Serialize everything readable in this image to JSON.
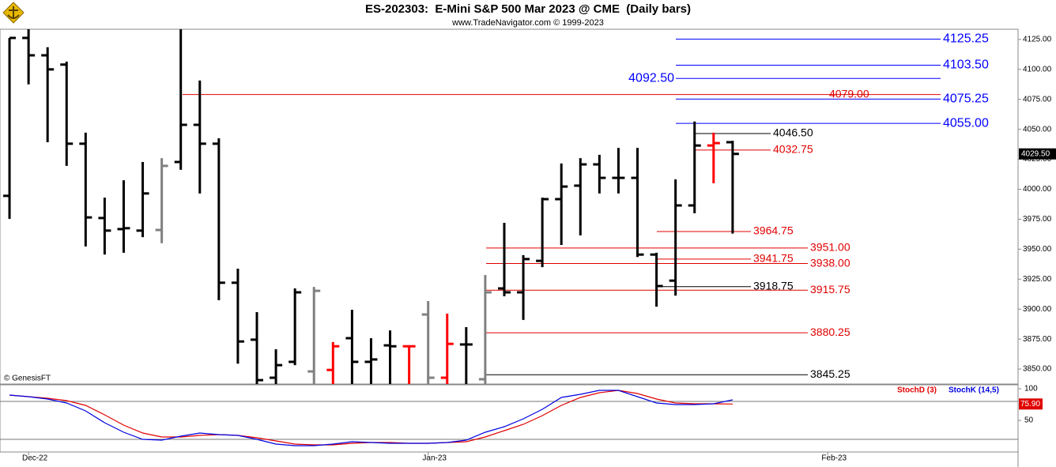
{
  "header": {
    "title": "ES-202303:  E-Mini S&P 500 Mar 2023 @ CME  (Daily bars)",
    "subtitle": "www.TradeNavigator.com © 1999-2023"
  },
  "chart_data": [
    {
      "type": "ohlc",
      "watermark": "© GenesisFT",
      "xlim": [
        -0.5,
        53
      ],
      "ylim": [
        3837.5,
        4133.5
      ],
      "yticks": [
        {
          "value": 4125,
          "label": "4125.00"
        },
        {
          "value": 4100,
          "label": "4100.00"
        },
        {
          "value": 4075,
          "label": "4075.00"
        },
        {
          "value": 4050,
          "label": "4050.00"
        },
        {
          "value": 4025,
          "label": "4025.00"
        },
        {
          "value": 4000,
          "label": "4000.00"
        },
        {
          "value": 3975,
          "label": "3975.00"
        },
        {
          "value": 3950,
          "label": "3950.00"
        },
        {
          "value": 3925,
          "label": "3925.00"
        },
        {
          "value": 3900,
          "label": "3900.00"
        },
        {
          "value": 3875,
          "label": "3875.00"
        },
        {
          "value": 3850,
          "label": "3850.00"
        }
      ],
      "open": [
        3994.5,
        4126.25,
        4111.75,
        4104,
        4038,
        3976,
        3966.75,
        3965.5,
        3966,
        4022.75,
        4053.75,
        4038,
        3922,
        3874.5,
        3842.75,
        3856,
        3848,
        3849.25,
        3875.75,
        3856,
        3869.75,
        3869,
        3895.5,
        3842.75,
        3870.5,
        3841.5,
        3917.25,
        3914,
        3940.25,
        3991.75,
        4003,
        4020.75,
        4009.5,
        4009.5,
        3945.5,
        3923.75,
        3986.5,
        4036.5,
        4039.25
      ],
      "high": [
        4126.25,
        4135,
        4118.5,
        4106.5,
        4047.25,
        3993,
        4007.5,
        4022.75,
        4026,
        4137,
        4090.75,
        4042.5,
        3933.75,
        3897.5,
        3866.5,
        3917.25,
        3918.5,
        3872.5,
        3899.5,
        3875.75,
        3882.25,
        3869.75,
        3906.75,
        3896.25,
        3885,
        3928.5,
        3972,
        3945,
        3993,
        4021.5,
        4026,
        4028.75,
        4034.5,
        4034.5,
        3947,
        4008.25,
        4056.5,
        4047.25,
        4040.5
      ],
      "low": [
        3975.25,
        4087.5,
        4039.25,
        4019.5,
        3952.25,
        3945.5,
        3947,
        3960,
        3955,
        4016.25,
        3996.5,
        3907.5,
        3854.5,
        3832,
        3832,
        3853.25,
        3830,
        3830,
        3830,
        3830,
        3830,
        3830,
        3830,
        3830,
        3830,
        3830,
        3910.75,
        3891,
        3935,
        3953.5,
        3961.5,
        3996.5,
        3996.5,
        3943.5,
        3902,
        3911.25,
        3980,
        4005,
        3963
      ],
      "close": [
        4126.25,
        4111.75,
        4100,
        4038,
        3976.5,
        3965.5,
        3967.5,
        3996.5,
        4019.5,
        4053.75,
        4038,
        3922,
        3873,
        3840.75,
        3853.25,
        3914,
        3915.25,
        3869,
        3856,
        3858,
        3869,
        3869,
        3842.75,
        3871,
        3870.5,
        3914,
        3914,
        3941.75,
        3991.75,
        4002.25,
        4020.75,
        4009.5,
        4009.5,
        3945.5,
        3919.25,
        3986.5,
        4036.5,
        4038.5,
        4029.5
      ],
      "colors": [
        "#000000",
        "#000000",
        "#000000",
        "#000000",
        "#000000",
        "#000000",
        "#000000",
        "#000000",
        "#808080",
        "#000000",
        "#000000",
        "#000000",
        "#000000",
        "#000000",
        "#000000",
        "#000000",
        "#808080",
        "#ff0000",
        "#000000",
        "#000000",
        "#000000",
        "#ff0000",
        "#808080",
        "#ff0000",
        "#000000",
        "#808080",
        "#000000",
        "#000000",
        "#000000",
        "#000000",
        "#000000",
        "#000000",
        "#000000",
        "#000000",
        "#000000",
        "#000000",
        "#000000",
        "#ff0000",
        "#000000"
      ],
      "current_price": {
        "value": 4029.5,
        "label": "4029.50"
      },
      "levels": [
        {
          "value": 4125.25,
          "color": "#0000ff"
        },
        {
          "value": 4103.5,
          "label": "4103.50",
          "color": "#0000ff"
        },
        {
          "value": 4092.5,
          "label": "4092.50",
          "color": "#0000ff"
        },
        {
          "value": 4079,
          "label": "4079.00",
          "color": "#e00000"
        },
        {
          "value": 4075.25,
          "color": "#0000ff"
        },
        {
          "value": 4055,
          "label": "4055.00",
          "color": "#0000ff"
        },
        {
          "value": 4046.5,
          "label": "4046.50",
          "color": "#000000"
        },
        {
          "value": 4032.75,
          "color": "#e00000"
        },
        {
          "value": 3964.75,
          "color": "#e00000"
        },
        {
          "value": 3951,
          "label": "3951.00",
          "color": "#e00000"
        },
        {
          "value": 3941.75,
          "color": "#e00000"
        },
        {
          "value": 3938,
          "label": "3938.00",
          "color": "#e00000"
        },
        {
          "value": 3918.75,
          "color": "#000000"
        },
        {
          "value": 3915.75,
          "color": "#e00000"
        },
        {
          "value": 3880.25,
          "color": "#e00000"
        },
        {
          "value": 3845.25,
          "color": "#000000"
        }
      ]
    },
    {
      "type": "line",
      "xlim": [
        -0.5,
        53
      ],
      "ylim": [
        0,
        105
      ],
      "yticks": [
        50,
        100
      ],
      "levels": [
        80,
        20
      ],
      "xticks": [
        {
          "value": 1,
          "label": "Dec-22"
        },
        {
          "value": 22,
          "label": "Jan-23"
        },
        {
          "value": 43,
          "label": "Feb-23"
        }
      ],
      "series": [
        {
          "name": "StochD (3)",
          "color": "#e00000",
          "values": [
            90,
            87.5,
            85,
            81.25,
            73.75,
            58.75,
            42.5,
            30,
            23.75,
            23.75,
            26.25,
            27.5,
            26.25,
            22.5,
            17.5,
            12.5,
            11.25,
            11.25,
            13.75,
            15,
            15,
            13.75,
            13.75,
            15,
            16.25,
            23.75,
            33.75,
            43.75,
            57.5,
            73.75,
            86.25,
            93.75,
            97.5,
            92.5,
            83.75,
            77.5,
            76.25,
            76.25,
            75.9
          ],
          "value_labels": [
            null,
            null,
            null,
            null,
            null,
            null,
            null,
            null,
            null,
            null,
            null,
            null,
            null,
            null,
            null,
            null,
            null,
            null,
            null,
            null,
            null,
            null,
            null,
            null,
            null,
            null,
            null,
            null,
            null,
            null,
            null,
            null,
            null,
            null,
            null,
            null,
            null,
            null,
            "75.90"
          ]
        },
        {
          "name": "StochK (14,5)",
          "color": "#0000e0",
          "values": [
            90,
            87.5,
            83.75,
            77.5,
            65,
            46.25,
            31.25,
            20,
            18.75,
            25,
            30,
            27.5,
            26.25,
            20,
            12.5,
            10,
            10,
            12.5,
            16.25,
            15,
            13.75,
            13.75,
            13.75,
            15,
            18.75,
            31.25,
            40,
            52.5,
            67.5,
            86.25,
            91.25,
            97.5,
            97.5,
            87.5,
            77.5,
            75,
            75,
            76.25,
            82.5
          ]
        }
      ]
    }
  ]
}
